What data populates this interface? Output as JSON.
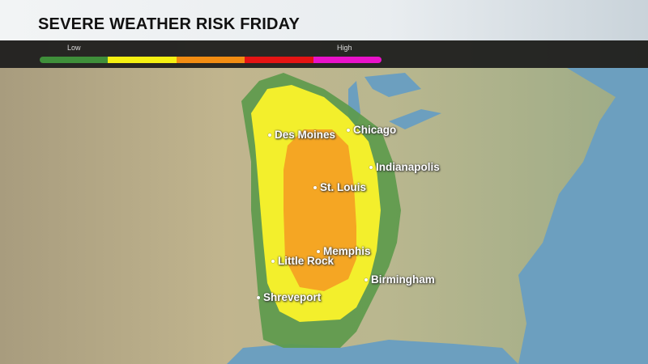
{
  "header": {
    "title": "SEVERE WEATHER RISK FRIDAY"
  },
  "legend": {
    "low_label": "Low",
    "high_label": "High",
    "colors": [
      "#3f8f3a",
      "#f5f012",
      "#f28c12",
      "#e51414",
      "#e912c9"
    ]
  },
  "risk_area_colors": {
    "marginal": "#5d9a4c",
    "slight": "#f3ef2c",
    "enhanced": "#f5a623"
  },
  "cities": [
    {
      "name": "Des Moines"
    },
    {
      "name": "Chicago"
    },
    {
      "name": "Indianapolis"
    },
    {
      "name": "St. Louis"
    },
    {
      "name": "Memphis"
    },
    {
      "name": "Little Rock"
    },
    {
      "name": "Birmingham"
    },
    {
      "name": "Shreveport"
    }
  ]
}
